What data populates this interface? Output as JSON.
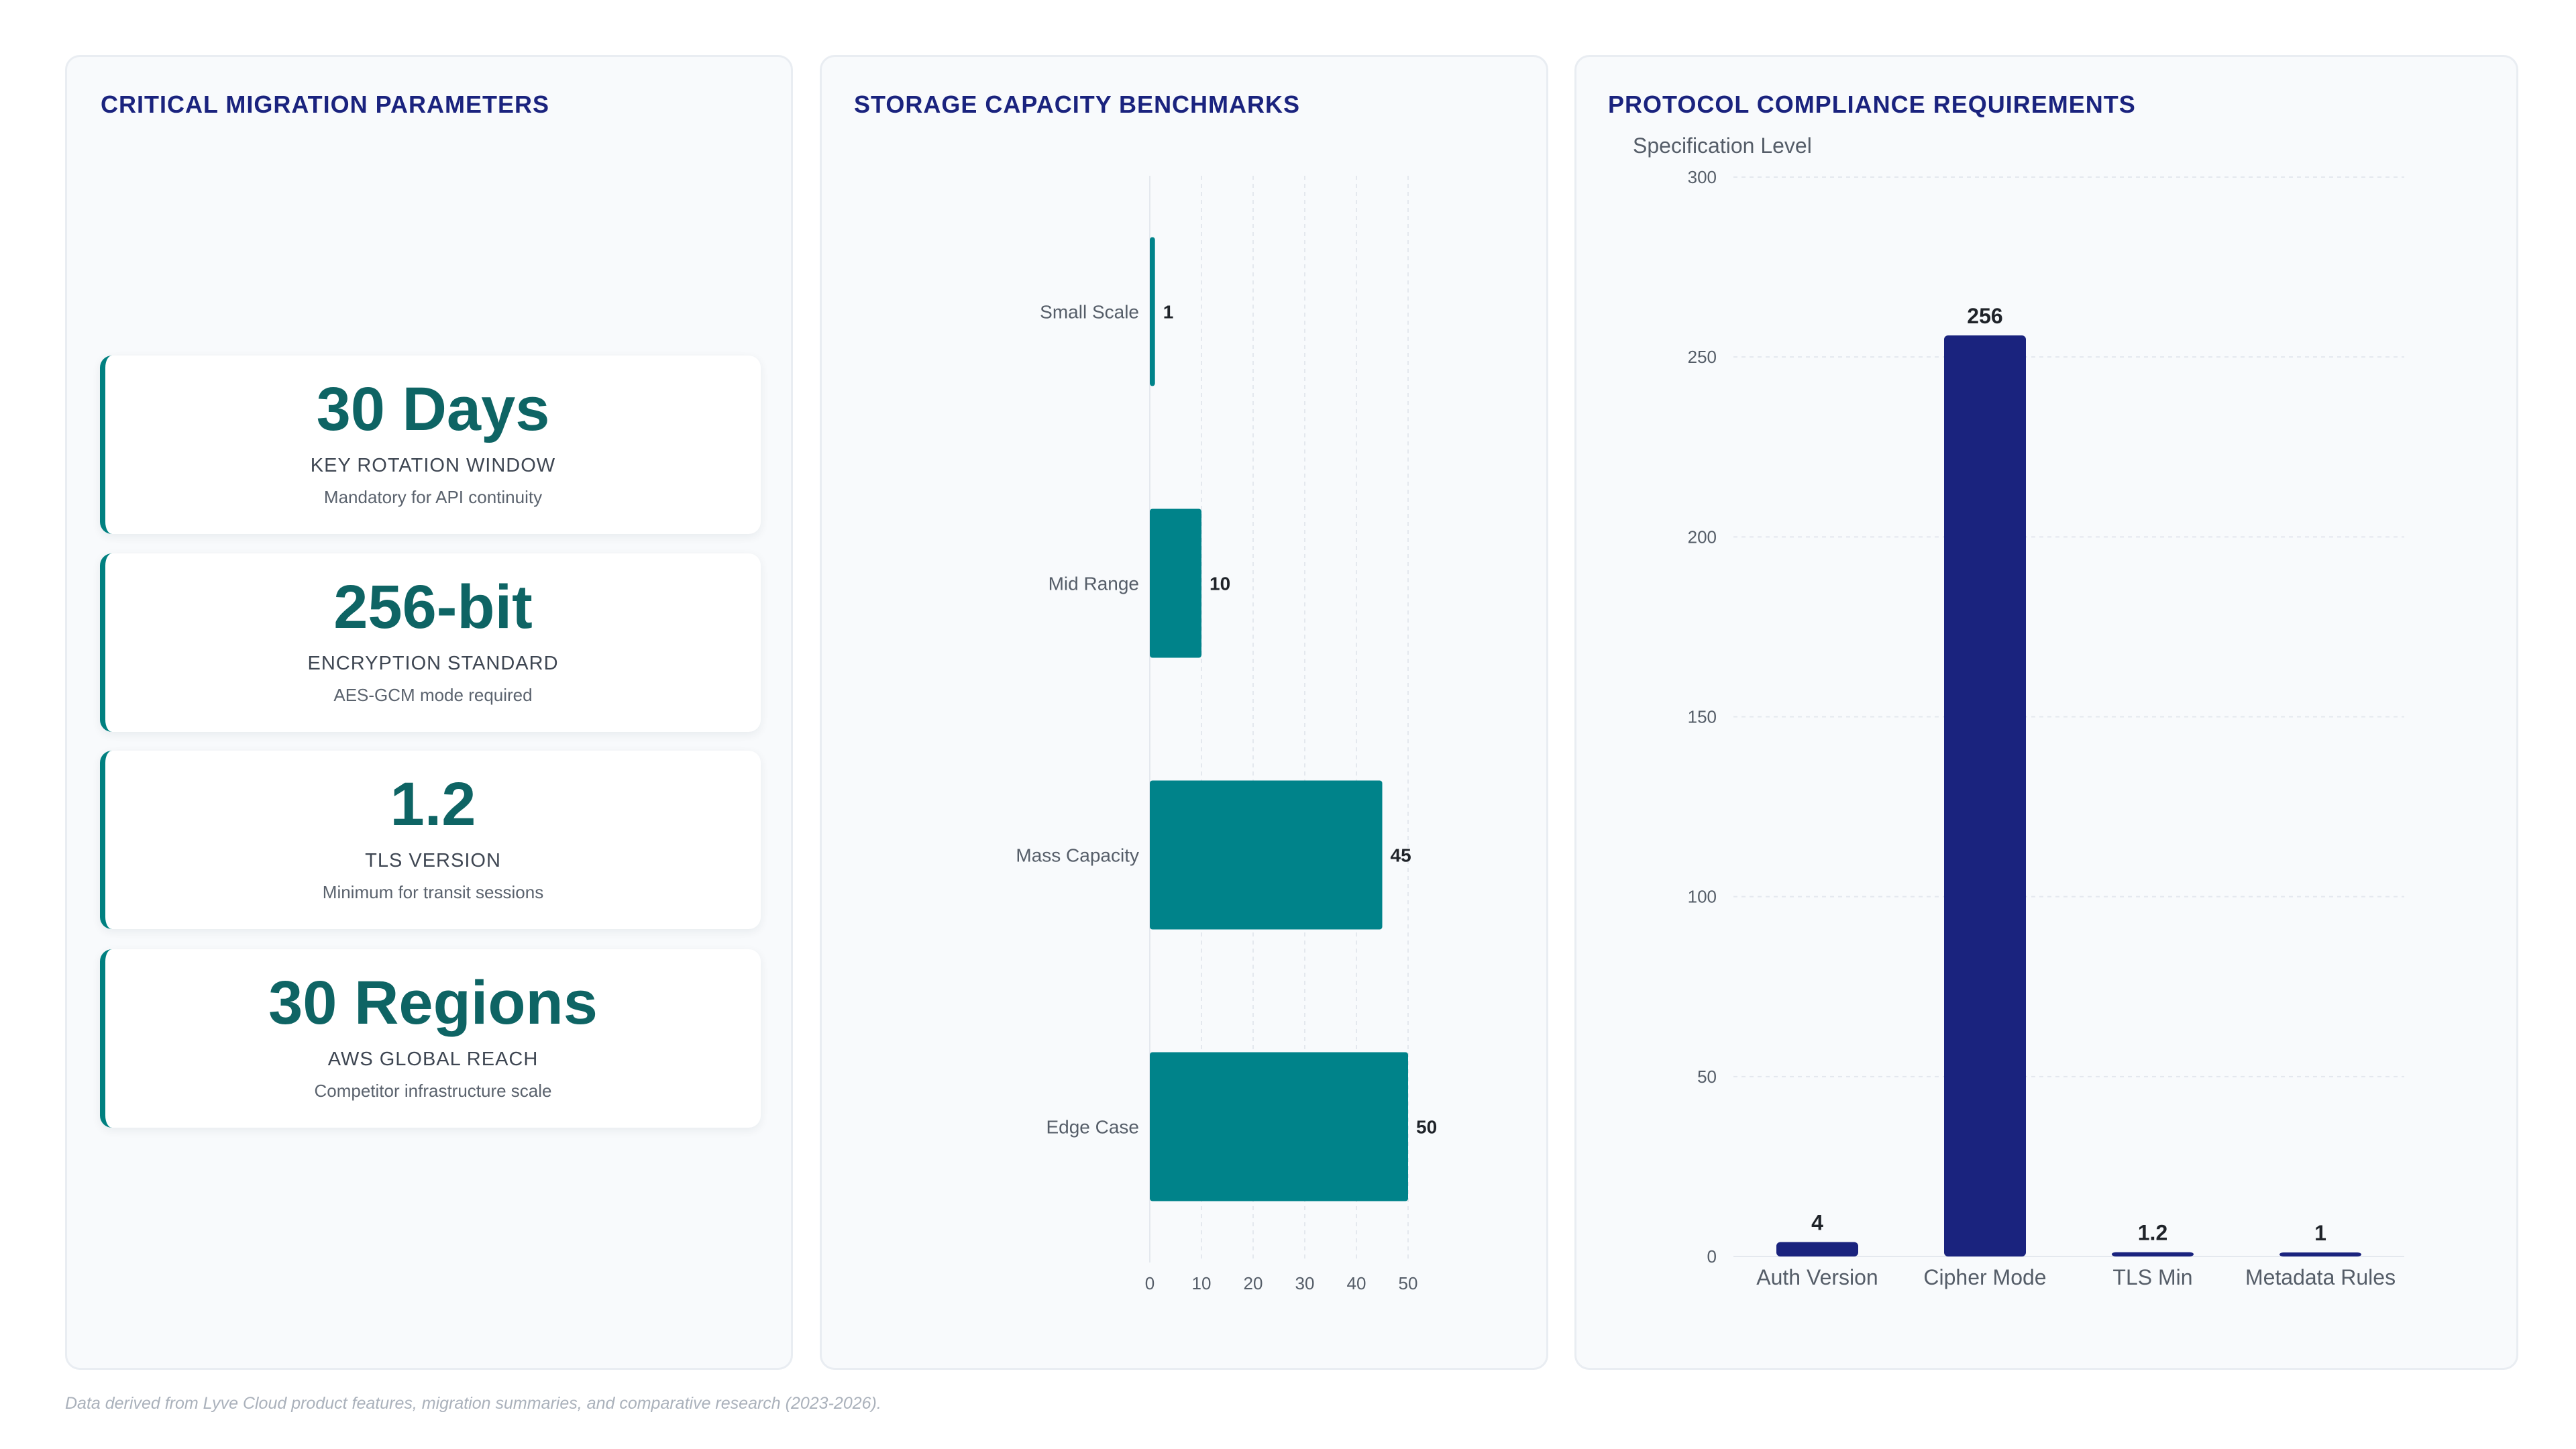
{
  "footnote": "Data derived from Lyve Cloud product features, migration summaries, and comparative research (2023-2026).",
  "params_panel": {
    "title": "CRITICAL MIGRATION PARAMETERS",
    "cards": [
      {
        "value": "30 Days",
        "label": "KEY ROTATION WINDOW",
        "sub": "Mandatory for API continuity"
      },
      {
        "value": "256-bit",
        "label": "ENCRYPTION STANDARD",
        "sub": "AES-GCM mode required"
      },
      {
        "value": "1.2",
        "label": "TLS VERSION",
        "sub": "Minimum for transit sessions"
      },
      {
        "value": "30 Regions",
        "label": "AWS GLOBAL REACH",
        "sub": "Competitor infrastructure scale"
      }
    ]
  },
  "storage_panel": {
    "title": "STORAGE CAPACITY BENCHMARKS"
  },
  "protocol_panel": {
    "title": "PROTOCOL COMPLIANCE REQUIREMENTS"
  },
  "chart_data": [
    {
      "type": "bar",
      "orientation": "horizontal",
      "title": "STORAGE CAPACITY BENCHMARKS",
      "categories": [
        "Small Scale",
        "Mid Range",
        "Mass Capacity",
        "Edge Case"
      ],
      "values": [
        1,
        10,
        45,
        50
      ],
      "xlim": [
        0,
        50
      ],
      "xticks": [
        0,
        10,
        20,
        30,
        40,
        50
      ],
      "grid": true,
      "color": "#00838a"
    },
    {
      "type": "bar",
      "orientation": "vertical",
      "title": "PROTOCOL COMPLIANCE REQUIREMENTS",
      "ylabel": "Specification Level",
      "categories": [
        "Auth Version",
        "Cipher Mode",
        "TLS Min",
        "Metadata Rules"
      ],
      "values": [
        4,
        256,
        1.2,
        1
      ],
      "ylim": [
        0,
        300
      ],
      "yticks": [
        0,
        50,
        100,
        150,
        200,
        250,
        300
      ],
      "grid": true,
      "color": "#1a237e"
    }
  ]
}
